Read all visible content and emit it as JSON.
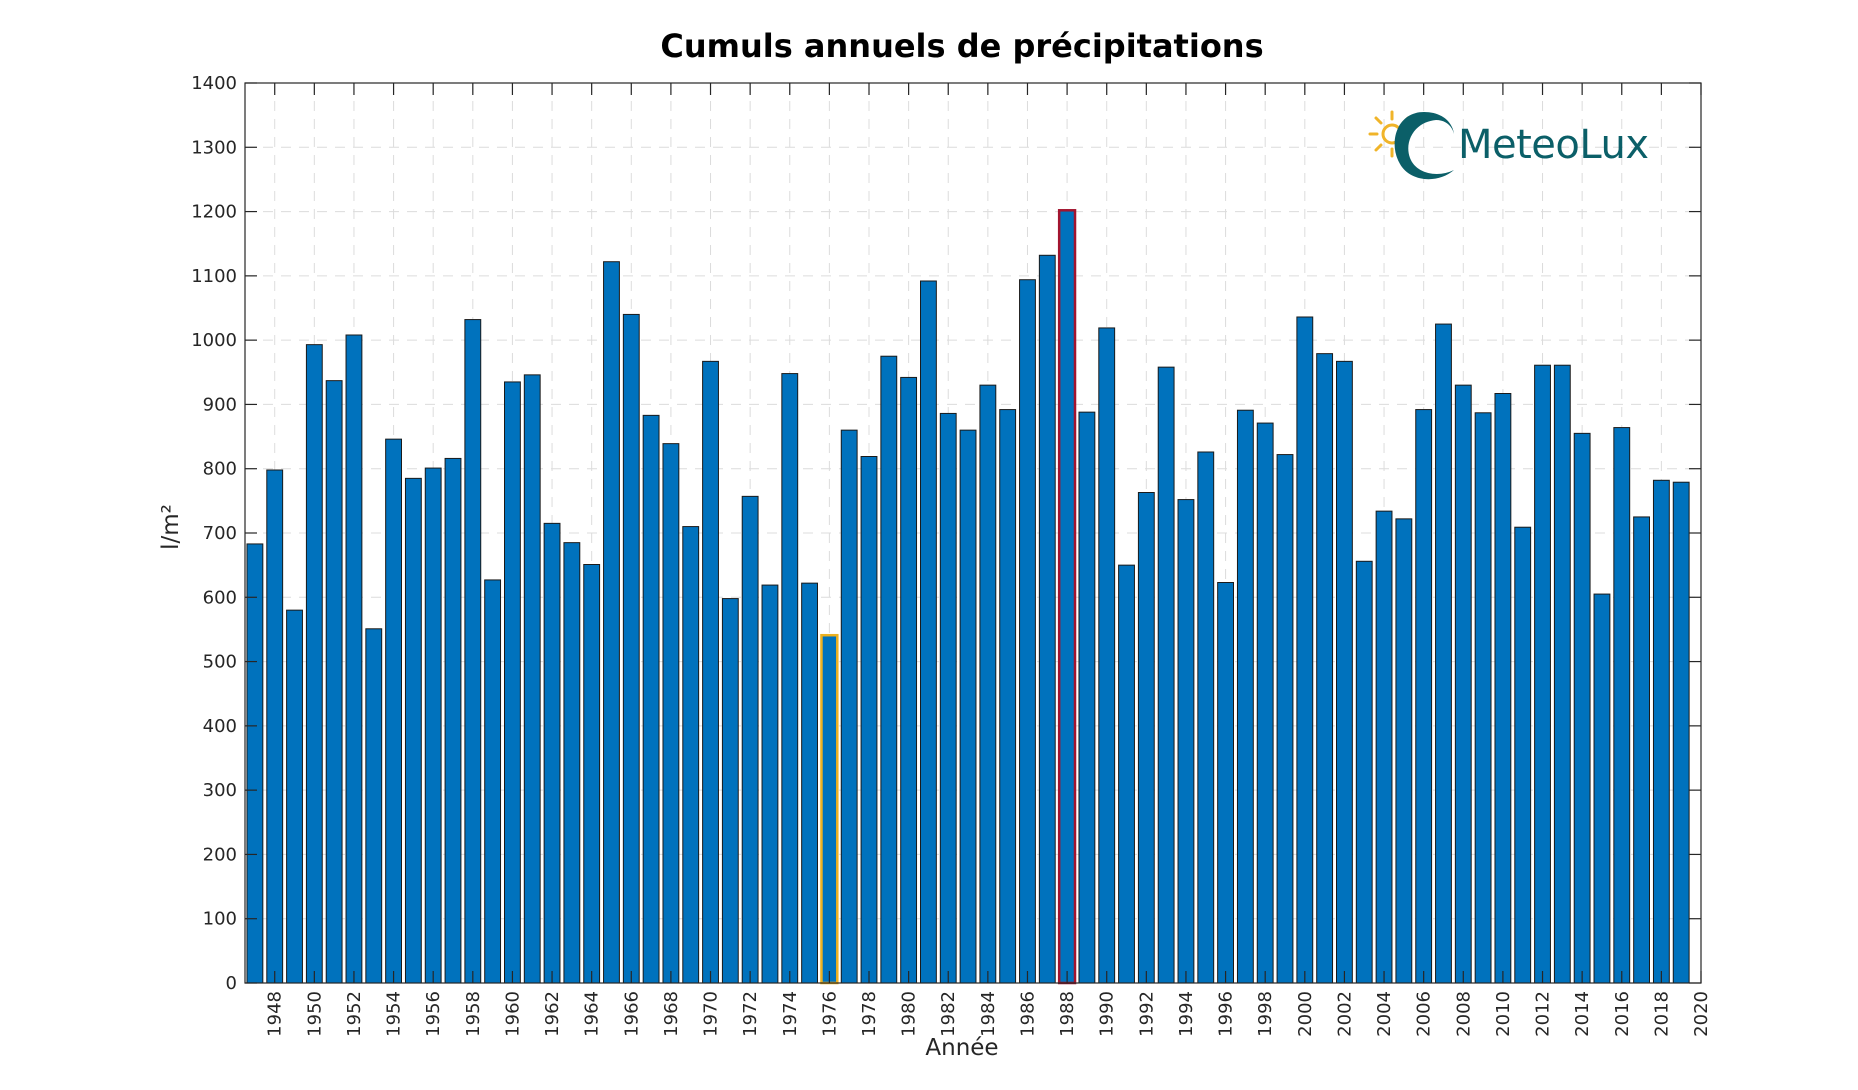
{
  "chart_data": {
    "type": "bar",
    "title": "Cumuls annuels de précipitations",
    "xlabel": "Année",
    "ylabel": "l/m²",
    "ylim": [
      0,
      1400
    ],
    "yticks": [
      0,
      100,
      200,
      300,
      400,
      500,
      600,
      700,
      800,
      900,
      1000,
      1100,
      1200,
      1300,
      1400
    ],
    "xlim": [
      1946.5,
      2020
    ],
    "xticks": [
      1948,
      1950,
      1952,
      1954,
      1956,
      1958,
      1960,
      1962,
      1964,
      1966,
      1968,
      1970,
      1972,
      1974,
      1976,
      1978,
      1980,
      1982,
      1984,
      1986,
      1988,
      1990,
      1992,
      1994,
      1996,
      1998,
      2000,
      2002,
      2004,
      2006,
      2008,
      2010,
      2012,
      2014,
      2016,
      2018,
      2020
    ],
    "grid": true,
    "bar_color": "#0072bd",
    "highlight_min": {
      "year": 1976,
      "edge_color": "#edb120"
    },
    "highlight_max": {
      "year": 1988,
      "edge_color": "#a2142f"
    },
    "years": [
      1947,
      1948,
      1949,
      1950,
      1951,
      1952,
      1953,
      1954,
      1955,
      1956,
      1957,
      1958,
      1959,
      1960,
      1961,
      1962,
      1963,
      1964,
      1965,
      1966,
      1967,
      1968,
      1969,
      1970,
      1971,
      1972,
      1973,
      1974,
      1975,
      1976,
      1977,
      1978,
      1979,
      1980,
      1981,
      1982,
      1983,
      1984,
      1985,
      1986,
      1987,
      1988,
      1989,
      1990,
      1991,
      1992,
      1993,
      1994,
      1995,
      1996,
      1997,
      1998,
      1999,
      2000,
      2001,
      2002,
      2003,
      2004,
      2005,
      2006,
      2007,
      2008,
      2009,
      2010,
      2011,
      2012,
      2013,
      2014,
      2015,
      2016,
      2017,
      2018,
      2019
    ],
    "values": [
      683,
      798,
      580,
      993,
      937,
      1008,
      551,
      846,
      785,
      801,
      816,
      1032,
      627,
      935,
      946,
      715,
      685,
      651,
      1122,
      1040,
      883,
      839,
      710,
      967,
      598,
      757,
      619,
      948,
      622,
      541,
      860,
      819,
      975,
      942,
      1092,
      886,
      860,
      930,
      892,
      1094,
      1132,
      1202,
      888,
      1019,
      650,
      763,
      958,
      752,
      826,
      623,
      891,
      871,
      822,
      1036,
      979,
      967,
      656,
      734,
      722,
      892,
      1025,
      930,
      887,
      917,
      709,
      961,
      961,
      855,
      605,
      864,
      725,
      782,
      779
    ]
  },
  "logo": {
    "text": "MeteoLux"
  }
}
